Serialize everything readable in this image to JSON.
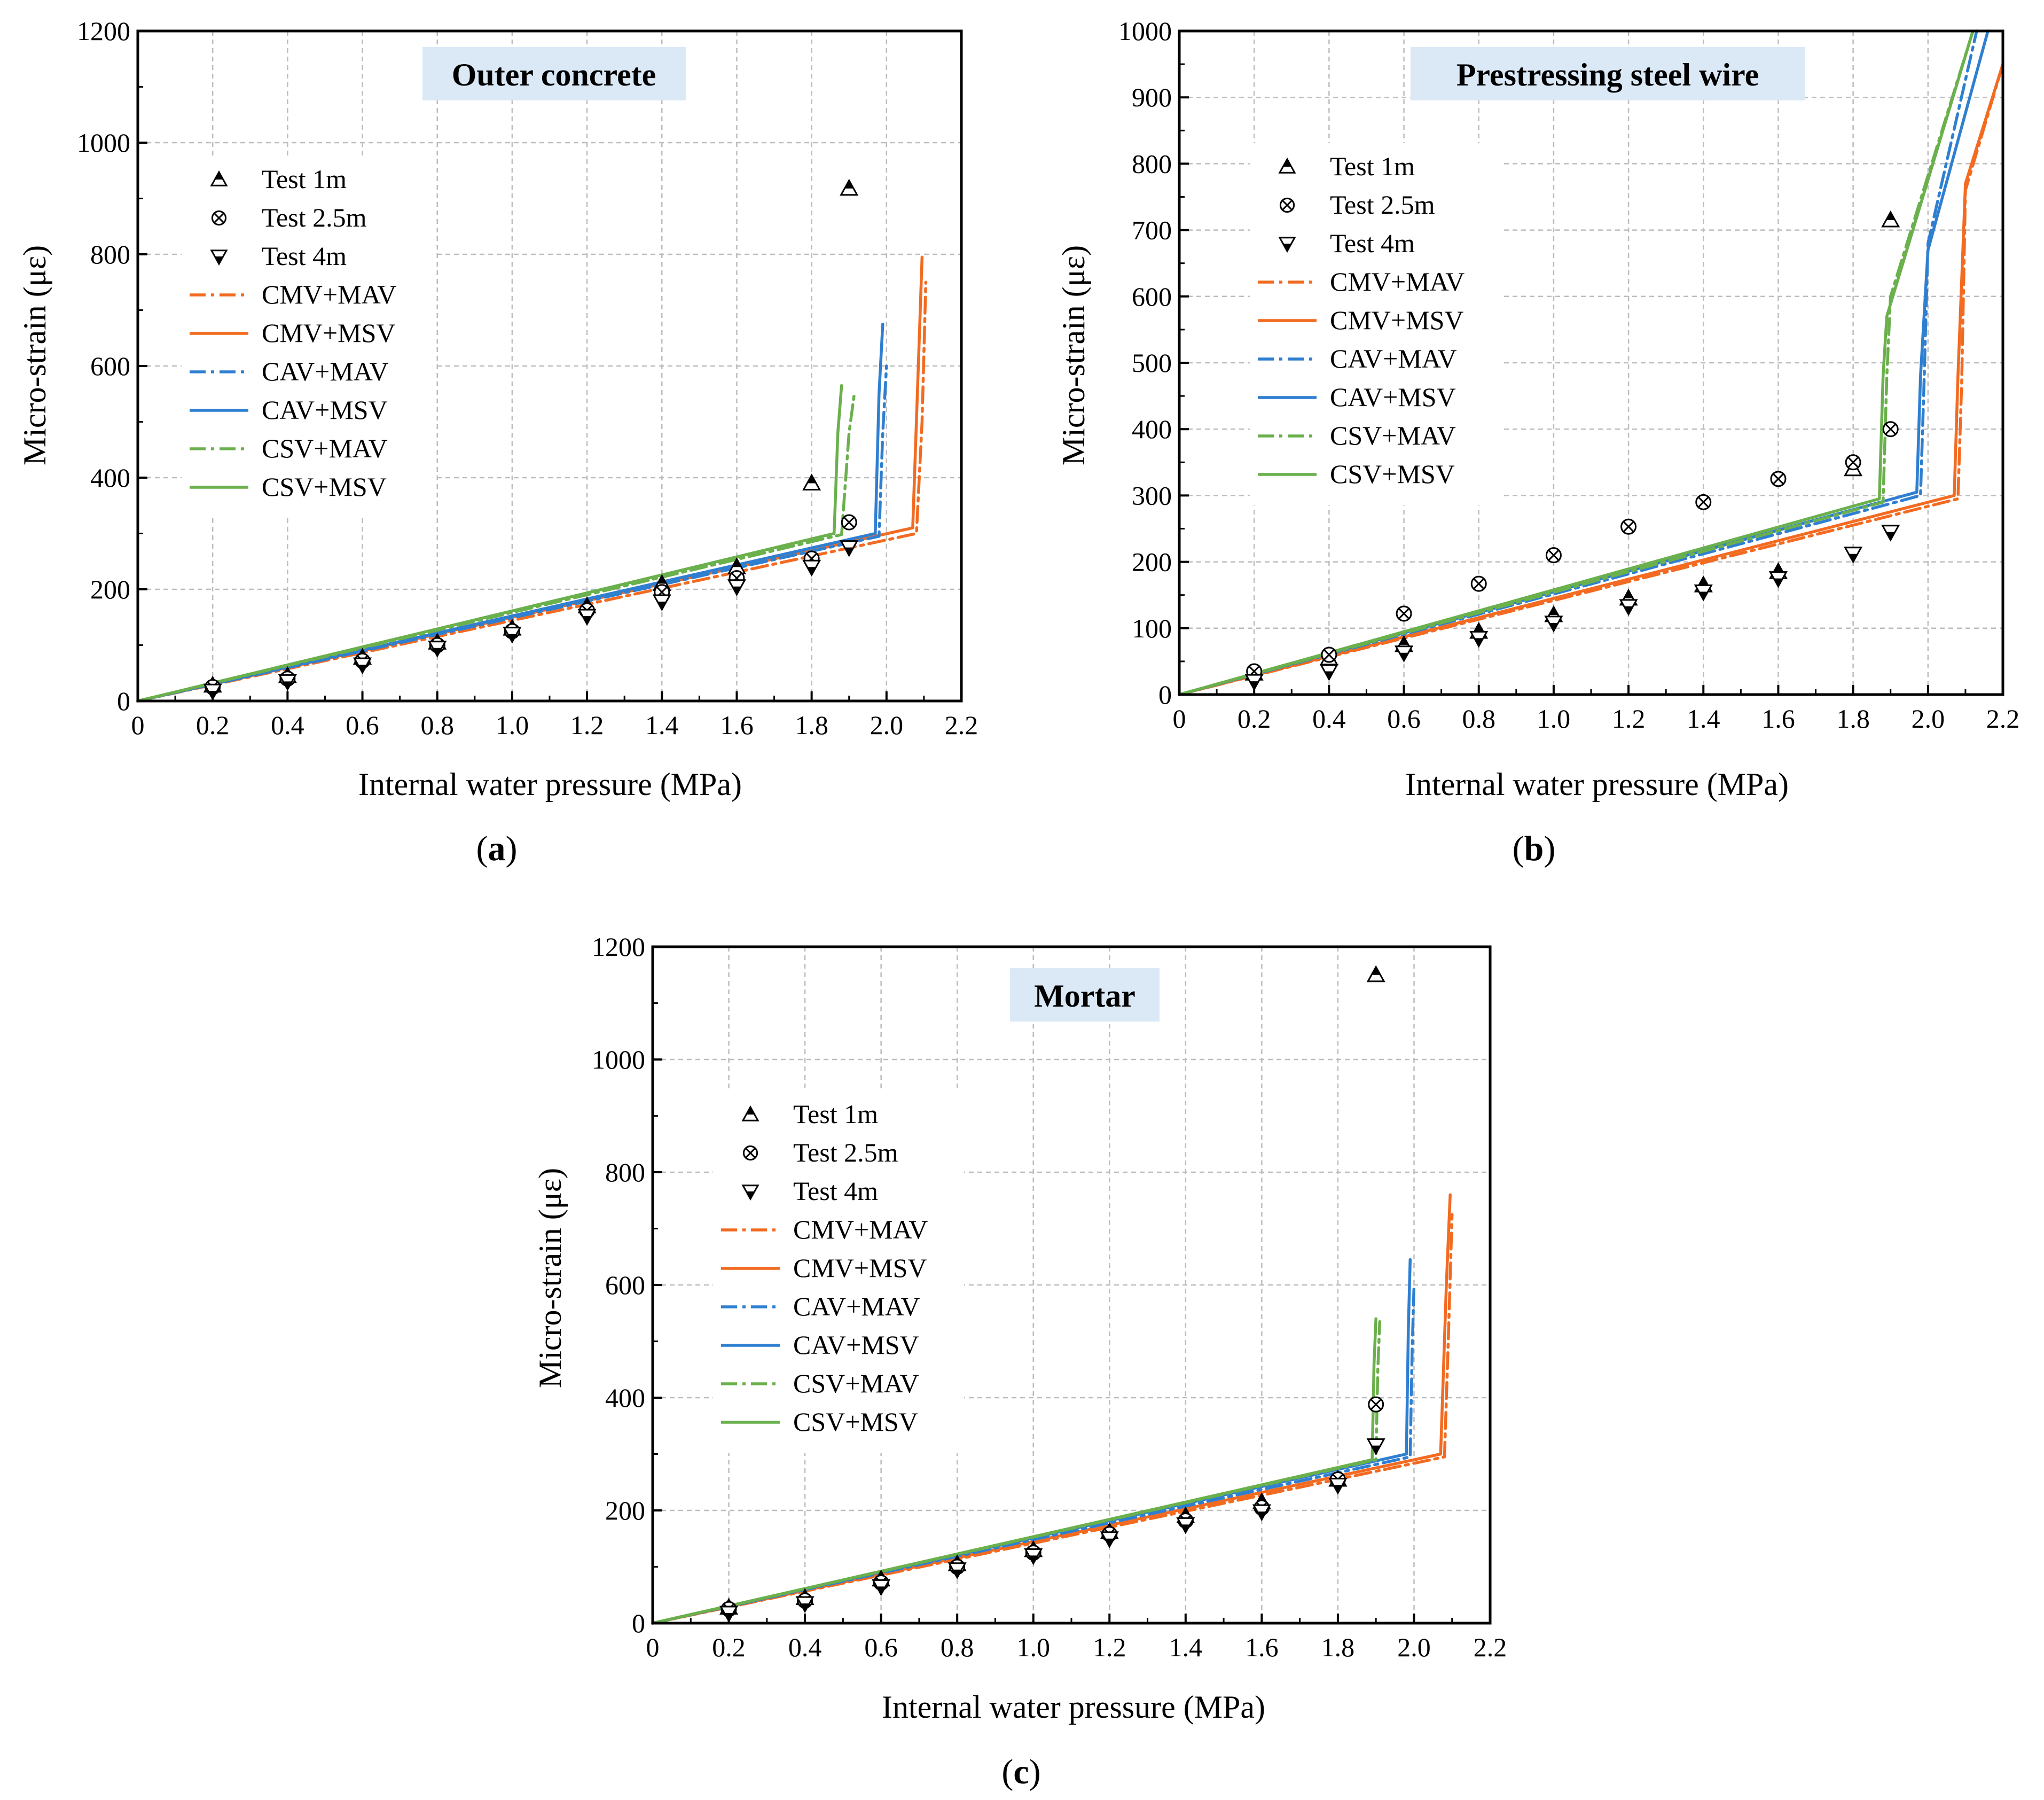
{
  "colors": {
    "CMV": "#f26b21",
    "CAV": "#2f7fd1",
    "CSV": "#6ab04c",
    "title_bg": "#dbe9f7",
    "marker": "#000000",
    "grid": "#bdbdbd"
  },
  "legend_entries": [
    {
      "label": "Test 1m",
      "kind": "marker",
      "symbol": "triangle-up"
    },
    {
      "label": "Test 2.5m",
      "kind": "marker",
      "symbol": "circle-x"
    },
    {
      "label": "Test 4m",
      "kind": "marker",
      "symbol": "triangle-down"
    },
    {
      "label": "CMV+MAV",
      "kind": "line",
      "family": "CMV",
      "dash": "dashdot"
    },
    {
      "label": "CMV+MSV",
      "kind": "line",
      "family": "CMV",
      "dash": "solid"
    },
    {
      "label": "CAV+MAV",
      "kind": "line",
      "family": "CAV",
      "dash": "dashdot"
    },
    {
      "label": "CAV+MSV",
      "kind": "line",
      "family": "CAV",
      "dash": "solid"
    },
    {
      "label": "CSV+MAV",
      "kind": "line",
      "family": "CSV",
      "dash": "dashdot"
    },
    {
      "label": "CSV+MSV",
      "kind": "line",
      "family": "CSV",
      "dash": "solid"
    }
  ],
  "chart_data": [
    {
      "id": "a",
      "type": "line",
      "panel_label": "a",
      "title": "Outer concrete",
      "xlabel": "Internal water pressure (MPa)",
      "ylabel": "Micro-strain (με)",
      "xlim": [
        0,
        2.2
      ],
      "ylim": [
        0,
        1200
      ],
      "xticks": [
        "0",
        "0.2",
        "0.4",
        "0.6",
        "0.8",
        "1.0",
        "1.2",
        "1.4",
        "1.6",
        "1.8",
        "2.0",
        "2.2"
      ],
      "yticks": [
        "0",
        "200",
        "400",
        "600",
        "800",
        "1000",
        "1200"
      ],
      "grid": true,
      "legend_position": "upper-left",
      "tests": [
        {
          "name": "Test 1m",
          "symbol": "triangle-up",
          "x": [
            0.2,
            0.4,
            0.6,
            0.8,
            1.0,
            1.2,
            1.4,
            1.6,
            1.8,
            1.9
          ],
          "y": [
            28,
            45,
            78,
            105,
            130,
            170,
            210,
            240,
            390,
            918
          ]
        },
        {
          "name": "Test 2.5m",
          "symbol": "circle-x",
          "x": [
            0.2,
            0.4,
            0.6,
            0.8,
            1.0,
            1.2,
            1.4,
            1.6,
            1.8,
            1.9
          ],
          "y": [
            25,
            40,
            72,
            100,
            125,
            162,
            195,
            220,
            255,
            320
          ]
        },
        {
          "name": "Test 4m",
          "symbol": "triangle-down",
          "x": [
            0.2,
            0.4,
            0.6,
            0.8,
            1.0,
            1.2,
            1.4,
            1.6,
            1.8,
            1.9
          ],
          "y": [
            18,
            35,
            65,
            95,
            120,
            152,
            178,
            205,
            240,
            275
          ]
        }
      ],
      "series": [
        {
          "name": "CMV+MAV",
          "family": "CMV",
          "dash": "dashdot",
          "x": [
            0,
            2.08,
            2.095,
            2.105
          ],
          "y": [
            0,
            300,
            500,
            750
          ]
        },
        {
          "name": "CMV+MSV",
          "family": "CMV",
          "dash": "solid",
          "x": [
            0,
            2.07,
            2.085,
            2.095
          ],
          "y": [
            0,
            310,
            600,
            795
          ]
        },
        {
          "name": "CAV+MAV",
          "family": "CAV",
          "dash": "dashdot",
          "x": [
            0,
            1.98,
            1.99,
            2.0
          ],
          "y": [
            0,
            295,
            480,
            600
          ]
        },
        {
          "name": "CAV+MSV",
          "family": "CAV",
          "dash": "solid",
          "x": [
            0,
            1.97,
            1.98,
            1.99
          ],
          "y": [
            0,
            300,
            550,
            675
          ]
        },
        {
          "name": "CSV+MAV",
          "family": "CSV",
          "dash": "dashdot",
          "x": [
            0,
            1.88,
            1.9,
            1.915
          ],
          "y": [
            0,
            298,
            480,
            555
          ]
        },
        {
          "name": "CSV+MSV",
          "family": "CSV",
          "dash": "solid",
          "x": [
            0,
            1.86,
            1.87,
            1.88
          ],
          "y": [
            0,
            300,
            480,
            565
          ]
        }
      ]
    },
    {
      "id": "b",
      "type": "line",
      "panel_label": "b",
      "title": "Prestressing steel wire",
      "xlabel": "Internal water pressure (MPa)",
      "ylabel": "Micro-strain (με)",
      "xlim": [
        0,
        2.2
      ],
      "ylim": [
        0,
        1000
      ],
      "xticks": [
        "0",
        "0.2",
        "0.4",
        "0.6",
        "0.8",
        "1.0",
        "1.2",
        "1.4",
        "1.6",
        "1.8",
        "2.0",
        "2.2"
      ],
      "yticks": [
        "0",
        "100",
        "200",
        "300",
        "400",
        "500",
        "600",
        "700",
        "800",
        "900",
        "1000"
      ],
      "grid": true,
      "legend_position": "upper-left",
      "tests": [
        {
          "name": "Test 1m",
          "symbol": "triangle-up",
          "x": [
            0.2,
            0.4,
            0.6,
            0.8,
            1.0,
            1.2,
            1.4,
            1.6,
            1.8,
            1.9
          ],
          "y": [
            32,
            55,
            75,
            95,
            120,
            145,
            165,
            185,
            340,
            715
          ]
        },
        {
          "name": "Test 2.5m",
          "symbol": "circle-x",
          "x": [
            0.2,
            0.4,
            0.6,
            0.8,
            1.0,
            1.2,
            1.4,
            1.6,
            1.8,
            1.9
          ],
          "y": [
            35,
            60,
            122,
            167,
            210,
            253,
            290,
            325,
            350,
            400
          ]
        },
        {
          "name": "Test 4m",
          "symbol": "triangle-down",
          "x": [
            0.2,
            0.4,
            0.6,
            0.8,
            1.0,
            1.2,
            1.4,
            1.6,
            1.8,
            1.9
          ],
          "y": [
            20,
            35,
            63,
            85,
            108,
            133,
            155,
            175,
            212,
            245
          ]
        }
      ],
      "series": [
        {
          "name": "CMV+MAV",
          "family": "CMV",
          "dash": "dashdot",
          "x": [
            0,
            2.08,
            2.09,
            2.1,
            2.2
          ],
          "y": [
            0,
            295,
            470,
            760,
            950
          ]
        },
        {
          "name": "CMV+MSV",
          "family": "CMV",
          "dash": "solid",
          "x": [
            0,
            2.07,
            2.08,
            2.1,
            2.2
          ],
          "y": [
            0,
            300,
            480,
            770,
            950
          ]
        },
        {
          "name": "CAV+MAV",
          "family": "CAV",
          "dash": "dashdot",
          "x": [
            0,
            1.98,
            1.99,
            2.0,
            2.13
          ],
          "y": [
            0,
            300,
            480,
            680,
            1000
          ]
        },
        {
          "name": "CAV+MSV",
          "family": "CAV",
          "dash": "solid",
          "x": [
            0,
            1.97,
            1.98,
            2.0,
            2.16
          ],
          "y": [
            0,
            305,
            480,
            670,
            1000
          ]
        },
        {
          "name": "CSV+MAV",
          "family": "CSV",
          "dash": "dashdot",
          "x": [
            0,
            1.88,
            1.89,
            1.9,
            2.12
          ],
          "y": [
            0,
            290,
            480,
            600,
            1000
          ]
        },
        {
          "name": "CSV+MSV",
          "family": "CSV",
          "dash": "solid",
          "x": [
            0,
            1.87,
            1.88,
            1.89,
            2.12
          ],
          "y": [
            0,
            295,
            480,
            570,
            1000
          ]
        }
      ]
    },
    {
      "id": "c",
      "type": "line",
      "panel_label": "c",
      "title": "Mortar",
      "xlabel": "Internal water pressure (MPa)",
      "ylabel": "Micro-strain (με)",
      "xlim": [
        0,
        2.2
      ],
      "ylim": [
        0,
        1200
      ],
      "xticks": [
        "0",
        "0.2",
        "0.4",
        "0.6",
        "0.8",
        "1.0",
        "1.2",
        "1.4",
        "1.6",
        "1.8",
        "2.0",
        "2.2"
      ],
      "yticks": [
        "0",
        "200",
        "400",
        "600",
        "800",
        "1000",
        "1200"
      ],
      "grid": true,
      "legend_position": "upper-left",
      "tests": [
        {
          "name": "Test 1m",
          "symbol": "triangle-up",
          "x": [
            0.2,
            0.4,
            0.6,
            0.8,
            1.0,
            1.2,
            1.4,
            1.6,
            1.8,
            1.9
          ],
          "y": [
            28,
            45,
            78,
            105,
            130,
            162,
            190,
            215,
            255,
            1150
          ]
        },
        {
          "name": "Test 2.5m",
          "symbol": "circle-x",
          "x": [
            0.2,
            0.4,
            0.6,
            0.8,
            1.0,
            1.2,
            1.4,
            1.6,
            1.8,
            1.9
          ],
          "y": [
            25,
            40,
            72,
            100,
            125,
            158,
            182,
            205,
            255,
            388
          ]
        },
        {
          "name": "Test 4m",
          "symbol": "triangle-down",
          "x": [
            0.2,
            0.4,
            0.6,
            0.8,
            1.0,
            1.2,
            1.4,
            1.6,
            1.8,
            1.9
          ],
          "y": [
            18,
            35,
            65,
            95,
            120,
            150,
            175,
            198,
            245,
            315
          ]
        }
      ],
      "series": [
        {
          "name": "CMV+MAV",
          "family": "CMV",
          "dash": "dashdot",
          "x": [
            0,
            2.08,
            2.09,
            2.1
          ],
          "y": [
            0,
            295,
            500,
            725
          ]
        },
        {
          "name": "CMV+MSV",
          "family": "CMV",
          "dash": "solid",
          "x": [
            0,
            2.07,
            2.085,
            2.095
          ],
          "y": [
            0,
            300,
            600,
            760
          ]
        },
        {
          "name": "CAV+MAV",
          "family": "CAV",
          "dash": "dashdot",
          "x": [
            0,
            1.99,
            1.995,
            2.0
          ],
          "y": [
            0,
            295,
            480,
            600
          ]
        },
        {
          "name": "CAV+MSV",
          "family": "CAV",
          "dash": "solid",
          "x": [
            0,
            1.98,
            1.985,
            1.99
          ],
          "y": [
            0,
            300,
            520,
            645
          ]
        },
        {
          "name": "CSV+MAV",
          "family": "CSV",
          "dash": "dashdot",
          "x": [
            0,
            1.9,
            1.905,
            1.91
          ],
          "y": [
            0,
            290,
            450,
            535
          ]
        },
        {
          "name": "CSV+MSV",
          "family": "CSV",
          "dash": "solid",
          "x": [
            0,
            1.89,
            1.895,
            1.9
          ],
          "y": [
            0,
            290,
            460,
            540
          ]
        }
      ]
    }
  ]
}
